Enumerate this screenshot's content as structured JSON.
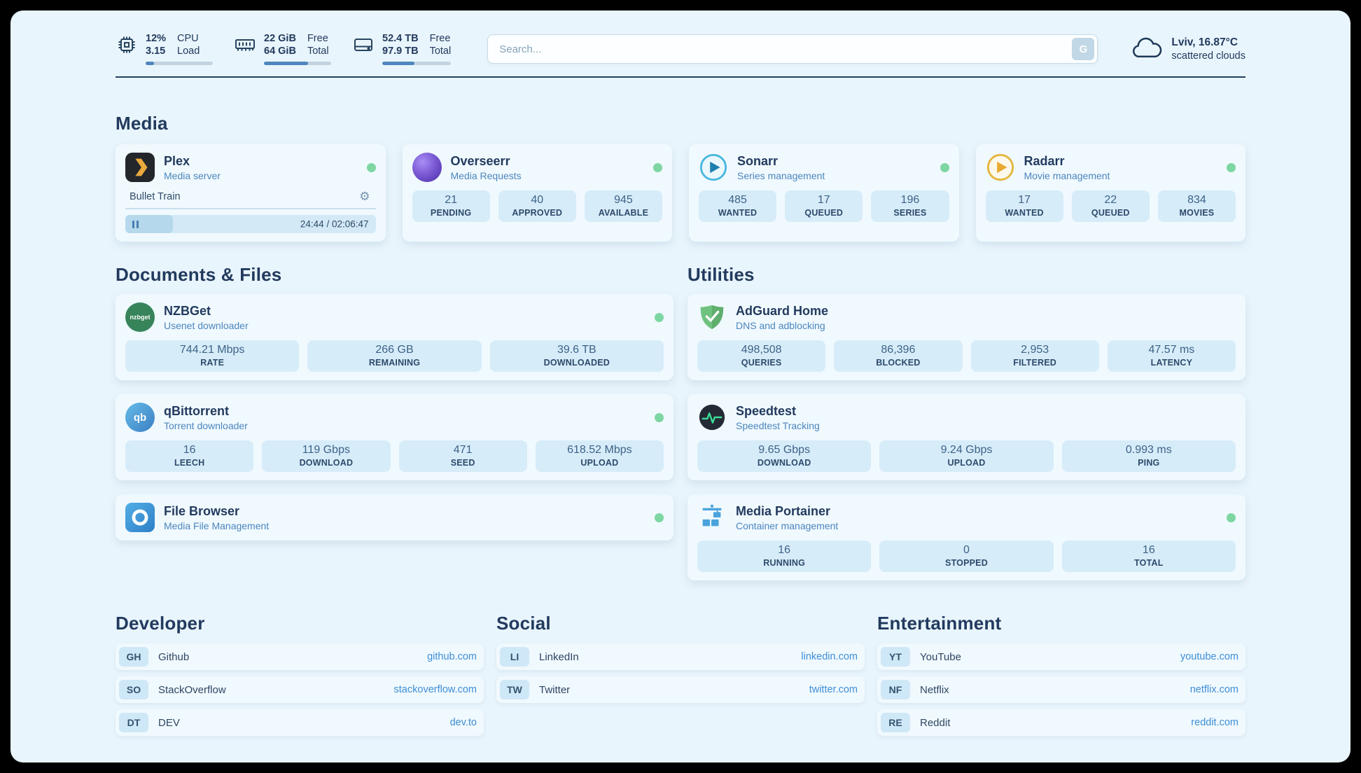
{
  "header": {
    "cpu": {
      "usage": "12%",
      "load": "3.15",
      "label_top": "CPU",
      "label_bottom": "Load",
      "bar": "12%"
    },
    "ram": {
      "free": "22 GiB",
      "total": "64 GiB",
      "label_top": "Free",
      "label_bottom": "Total",
      "bar": "66%"
    },
    "disk": {
      "free": "52.4 TB",
      "total": "97.9 TB",
      "label_top": "Free",
      "label_bottom": "Total",
      "bar": "47%"
    },
    "search": {
      "placeholder": "Search...",
      "engine_button": "G"
    },
    "weather": {
      "location": "Lviv, 16.87°C",
      "condition": "scattered clouds"
    }
  },
  "media": {
    "title": "Media",
    "plex": {
      "name": "Plex",
      "desc": "Media server",
      "now_playing": "Bullet Train",
      "time": "24:44 / 02:06:47",
      "progress": "19%"
    },
    "overseerr": {
      "name": "Overseerr",
      "desc": "Media Requests",
      "stats": [
        {
          "value": "21",
          "label": "PENDING"
        },
        {
          "value": "40",
          "label": "APPROVED"
        },
        {
          "value": "945",
          "label": "AVAILABLE"
        }
      ]
    },
    "sonarr": {
      "name": "Sonarr",
      "desc": "Series management",
      "stats": [
        {
          "value": "485",
          "label": "WANTED"
        },
        {
          "value": "17",
          "label": "QUEUED"
        },
        {
          "value": "196",
          "label": "SERIES"
        }
      ]
    },
    "radarr": {
      "name": "Radarr",
      "desc": "Movie management",
      "stats": [
        {
          "value": "17",
          "label": "WANTED"
        },
        {
          "value": "22",
          "label": "QUEUED"
        },
        {
          "value": "834",
          "label": "MOVIES"
        }
      ]
    }
  },
  "documents": {
    "title": "Documents & Files",
    "nzbget": {
      "name": "NZBGet",
      "desc": "Usenet downloader",
      "icon_text": "nzbget",
      "stats": [
        {
          "value": "744.21 Mbps",
          "label": "RATE"
        },
        {
          "value": "266 GB",
          "label": "REMAINING"
        },
        {
          "value": "39.6 TB",
          "label": "DOWNLOADED"
        }
      ]
    },
    "qbittorrent": {
      "name": "qBittorrent",
      "desc": "Torrent downloader",
      "icon_text": "qb",
      "stats": [
        {
          "value": "16",
          "label": "LEECH"
        },
        {
          "value": "119 Gbps",
          "label": "DOWNLOAD"
        },
        {
          "value": "471",
          "label": "SEED"
        },
        {
          "value": "618.52 Mbps",
          "label": "UPLOAD"
        }
      ]
    },
    "filebrowser": {
      "name": "File Browser",
      "desc": "Media File Management"
    }
  },
  "utilities": {
    "title": "Utilities",
    "adguard": {
      "name": "AdGuard Home",
      "desc": "DNS and adblocking",
      "stats": [
        {
          "value": "498,508",
          "label": "QUERIES"
        },
        {
          "value": "86,396",
          "label": "BLOCKED"
        },
        {
          "value": "2,953",
          "label": "FILTERED"
        },
        {
          "value": "47.57 ms",
          "label": "LATENCY"
        }
      ]
    },
    "speedtest": {
      "name": "Speedtest",
      "desc": "Speedtest Tracking",
      "stats": [
        {
          "value": "9.65 Gbps",
          "label": "DOWNLOAD"
        },
        {
          "value": "9.24 Gbps",
          "label": "UPLOAD"
        },
        {
          "value": "0.993 ms",
          "label": "PING"
        }
      ]
    },
    "portainer": {
      "name": "Media Portainer",
      "desc": "Container management",
      "stats": [
        {
          "value": "16",
          "label": "RUNNING"
        },
        {
          "value": "0",
          "label": "STOPPED"
        },
        {
          "value": "16",
          "label": "TOTAL"
        }
      ]
    }
  },
  "bookmarks": {
    "developer": {
      "title": "Developer",
      "items": [
        {
          "abbr": "GH",
          "name": "Github",
          "url": "github.com"
        },
        {
          "abbr": "SO",
          "name": "StackOverflow",
          "url": "stackoverflow.com"
        },
        {
          "abbr": "DT",
          "name": "DEV",
          "url": "dev.to"
        }
      ]
    },
    "social": {
      "title": "Social",
      "items": [
        {
          "abbr": "LI",
          "name": "LinkedIn",
          "url": "linkedin.com"
        },
        {
          "abbr": "TW",
          "name": "Twitter",
          "url": "twitter.com"
        }
      ]
    },
    "entertainment": {
      "title": "Entertainment",
      "items": [
        {
          "abbr": "YT",
          "name": "YouTube",
          "url": "youtube.com"
        },
        {
          "abbr": "NF",
          "name": "Netflix",
          "url": "netflix.com"
        },
        {
          "abbr": "RE",
          "name": "Reddit",
          "url": "reddit.com"
        }
      ]
    }
  },
  "colors": {
    "accent": "#4d86bd",
    "status_ok": "#7ed6a2",
    "link": "#3e8ed6",
    "page_bg": "#e9f5fc"
  }
}
